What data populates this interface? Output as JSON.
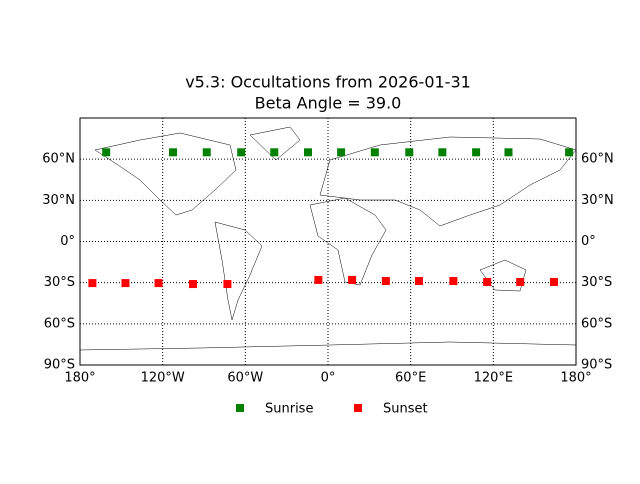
{
  "chart_data": {
    "type": "scatter",
    "title": "v5.3: Occultations from 2026-01-31",
    "subtitle": "Beta Angle = 39.0",
    "xlim": [
      -180,
      180
    ],
    "ylim": [
      -90,
      90
    ],
    "xticks": [
      {
        "value": -180,
        "label": "180°"
      },
      {
        "value": -120,
        "label": "120°W"
      },
      {
        "value": -60,
        "label": "60°W"
      },
      {
        "value": 0,
        "label": "0°"
      },
      {
        "value": 60,
        "label": "60°E"
      },
      {
        "value": 120,
        "label": "120°E"
      },
      {
        "value": 180,
        "label": "180°"
      }
    ],
    "yticks": [
      {
        "value": -90,
        "label": "90°S"
      },
      {
        "value": -60,
        "label": "60°S"
      },
      {
        "value": -30,
        "label": "30°S"
      },
      {
        "value": 0,
        "label": "0°"
      },
      {
        "value": 30,
        "label": "30°N"
      },
      {
        "value": 60,
        "label": "60°N"
      }
    ],
    "grid": true,
    "legend": "lower center",
    "series": [
      {
        "name": "Sunrise",
        "color": "#008000",
        "x": [
          -161,
          -112.5,
          -88,
          -63,
          -39,
          -14.5,
          9.5,
          34,
          59,
          83,
          107.5,
          131,
          175
        ],
        "y": [
          65,
          65,
          65,
          65,
          65,
          65,
          65,
          65,
          65,
          65,
          65,
          65,
          65
        ]
      },
      {
        "name": "Sunset",
        "color": "#ff0000",
        "x": [
          -171,
          -147,
          -123,
          -98,
          -73,
          -7,
          17.5,
          42,
          66,
          91,
          115.5,
          139.5,
          164
        ],
        "y": [
          -30.3,
          -30.3,
          -30.3,
          -31,
          -31,
          -28,
          -28,
          -28.8,
          -28.8,
          -28.8,
          -29.5,
          -29.5,
          -29.5
        ]
      }
    ]
  }
}
